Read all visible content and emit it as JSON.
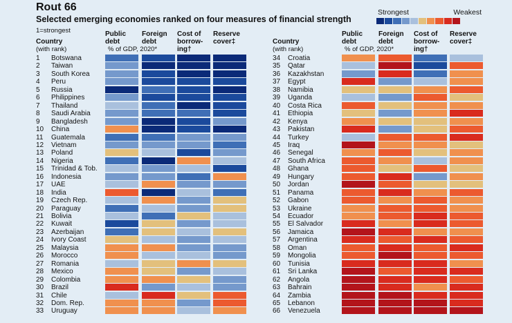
{
  "title": "Rout 66",
  "subtitle": "Selected emerging economies ranked on four measures of financial strength",
  "note": "1=strongest",
  "legend": {
    "strongest": "Strongest",
    "weakest": "Weakest"
  },
  "palette": [
    "#0b2a78",
    "#1b4a9c",
    "#3f6fb6",
    "#7599cc",
    "#a9c0dd",
    "#e3c07c",
    "#f0904e",
    "#ec5a2f",
    "#d92b1e",
    "#b3141b"
  ],
  "headers": {
    "country": "Country",
    "country_sub": "(with rank)",
    "public_debt": "Public debt",
    "foreign_debt": "Foreign debt",
    "gdp_note": "% of GDP, 2020*",
    "cost_of_borrowing": "Cost of borrow-ing†",
    "reserve_cover": "Reserve cover‡"
  },
  "chart_data": {
    "type": "table",
    "title": "Rout 66",
    "subtitle": "Selected emerging economies ranked on four measures of financial strength",
    "measures": [
      "Public debt",
      "Foreign debt",
      "Cost of borrowing",
      "Reserve cover"
    ],
    "scale": "0 = strongest, 9 = weakest",
    "rows": [
      {
        "rank": 1,
        "country": "Botswana",
        "levels": [
          2,
          1,
          0,
          0
        ]
      },
      {
        "rank": 2,
        "country": "Taiwan",
        "levels": [
          3,
          0,
          0,
          0
        ]
      },
      {
        "rank": 3,
        "country": "South Korea",
        "levels": [
          3,
          1,
          0,
          0
        ]
      },
      {
        "rank": 4,
        "country": "Peru",
        "levels": [
          3,
          1,
          1,
          1
        ]
      },
      {
        "rank": 5,
        "country": "Russia",
        "levels": [
          0,
          2,
          1,
          0
        ]
      },
      {
        "rank": 6,
        "country": "Philippines",
        "levels": [
          3,
          1,
          1,
          1
        ]
      },
      {
        "rank": 7,
        "country": "Thailand",
        "levels": [
          4,
          2,
          0,
          1
        ]
      },
      {
        "rank": 8,
        "country": "Saudi Arabia",
        "levels": [
          3,
          2,
          2,
          1
        ]
      },
      {
        "rank": 9,
        "country": "Bangladesh",
        "levels": [
          3,
          0,
          1,
          3
        ]
      },
      {
        "rank": 10,
        "country": "China",
        "levels": [
          6,
          0,
          1,
          0
        ]
      },
      {
        "rank": 11,
        "country": "Guatemala",
        "levels": [
          2,
          2,
          3,
          3
        ]
      },
      {
        "rank": 12,
        "country": "Vietnam",
        "levels": [
          3,
          3,
          3,
          2
        ]
      },
      {
        "rank": 13,
        "country": "Poland",
        "levels": [
          5,
          4,
          1,
          3
        ]
      },
      {
        "rank": 14,
        "country": "Nigeria",
        "levels": [
          2,
          0,
          6,
          4
        ]
      },
      {
        "rank": 15,
        "country": "Trinidad & Tob.",
        "levels": [
          4,
          3,
          4,
          1
        ]
      },
      {
        "rank": 16,
        "country": "Indonesia",
        "levels": [
          3,
          3,
          2,
          6
        ]
      },
      {
        "rank": 17,
        "country": "UAE",
        "levels": [
          4,
          6,
          3,
          3
        ]
      },
      {
        "rank": 18,
        "country": "India",
        "levels": [
          7,
          0,
          4,
          2
        ]
      },
      {
        "rank": 19,
        "country": "Czech Rep.",
        "levels": [
          4,
          6,
          3,
          5
        ]
      },
      {
        "rank": 20,
        "country": "Paraguay",
        "levels": [
          2,
          4,
          3,
          5
        ]
      },
      {
        "rank": 21,
        "country": "Bolivia",
        "levels": [
          4,
          2,
          5,
          4
        ]
      },
      {
        "rank": 22,
        "country": "Kuwait",
        "levels": [
          1,
          5,
          3,
          4
        ]
      },
      {
        "rank": 23,
        "country": "Azerbaijan",
        "levels": [
          2,
          5,
          4,
          5
        ]
      },
      {
        "rank": 24,
        "country": "Ivory Coast",
        "levels": [
          5,
          4,
          3,
          4
        ]
      },
      {
        "rank": 25,
        "country": "Malaysia",
        "levels": [
          6,
          6,
          3,
          3
        ]
      },
      {
        "rank": 26,
        "country": "Morocco",
        "levels": [
          6,
          4,
          4,
          3
        ]
      },
      {
        "rank": 27,
        "country": "Romania",
        "levels": [
          4,
          5,
          6,
          5
        ]
      },
      {
        "rank": 28,
        "country": "Mexico",
        "levels": [
          6,
          5,
          3,
          4
        ]
      },
      {
        "rank": 29,
        "country": "Colombia",
        "levels": [
          6,
          6,
          5,
          3
        ]
      },
      {
        "rank": 30,
        "country": "Brazil",
        "levels": [
          8,
          3,
          4,
          3
        ]
      },
      {
        "rank": 31,
        "country": "Chile",
        "levels": [
          4,
          8,
          5,
          7
        ]
      },
      {
        "rank": 32,
        "country": "Dom. Rep.",
        "levels": [
          6,
          6,
          3,
          7
        ]
      },
      {
        "rank": 33,
        "country": "Uruguay",
        "levels": [
          6,
          6,
          4,
          6
        ]
      },
      {
        "rank": 34,
        "country": "Croatia",
        "levels": [
          6,
          7,
          2,
          4
        ]
      },
      {
        "rank": 35,
        "country": "Qatar",
        "levels": [
          4,
          9,
          1,
          7
        ]
      },
      {
        "rank": 36,
        "country": "Kazakhstan",
        "levels": [
          3,
          8,
          2,
          6
        ]
      },
      {
        "rank": 37,
        "country": "Egypt",
        "levels": [
          8,
          3,
          4,
          6
        ]
      },
      {
        "rank": 38,
        "country": "Namibia",
        "levels": [
          5,
          5,
          6,
          7
        ]
      },
      {
        "rank": 39,
        "country": "Uganda",
        "levels": [
          4,
          3,
          7,
          5
        ]
      },
      {
        "rank": 40,
        "country": "Costa Rica",
        "levels": [
          7,
          5,
          6,
          6
        ]
      },
      {
        "rank": 41,
        "country": "Ethiopia",
        "levels": [
          5,
          3,
          6,
          8
        ]
      },
      {
        "rank": 42,
        "country": "Kenya",
        "levels": [
          6,
          5,
          5,
          6
        ]
      },
      {
        "rank": 43,
        "country": "Pakistan",
        "levels": [
          8,
          3,
          5,
          7
        ]
      },
      {
        "rank": 44,
        "country": "Turkey",
        "levels": [
          4,
          7,
          7,
          8
        ]
      },
      {
        "rank": 45,
        "country": "Iraq",
        "levels": [
          9,
          6,
          6,
          5
        ]
      },
      {
        "rank": 46,
        "country": "Senegal",
        "levels": [
          6,
          7,
          5,
          6
        ]
      },
      {
        "rank": 47,
        "country": "South Africa",
        "levels": [
          7,
          6,
          4,
          6
        ]
      },
      {
        "rank": 48,
        "country": "Ghana",
        "levels": [
          7,
          5,
          7,
          5
        ]
      },
      {
        "rank": 49,
        "country": "Hungary",
        "levels": [
          7,
          8,
          3,
          6
        ]
      },
      {
        "rank": 50,
        "country": "Jordan",
        "levels": [
          9,
          7,
          5,
          5
        ]
      },
      {
        "rank": 51,
        "country": "Panama",
        "levels": [
          7,
          8,
          6,
          7
        ]
      },
      {
        "rank": 52,
        "country": "Gabon",
        "levels": [
          7,
          6,
          7,
          6
        ]
      },
      {
        "rank": 53,
        "country": "Ukraine",
        "levels": [
          6,
          7,
          7,
          6
        ]
      },
      {
        "rank": 54,
        "country": "Ecuador",
        "levels": [
          6,
          7,
          8,
          7
        ]
      },
      {
        "rank": 55,
        "country": "El Salvador",
        "levels": [
          8,
          6,
          8,
          7
        ]
      },
      {
        "rank": 56,
        "country": "Jamaica",
        "levels": [
          9,
          8,
          6,
          6
        ]
      },
      {
        "rank": 57,
        "country": "Argentina",
        "levels": [
          8,
          7,
          8,
          7
        ]
      },
      {
        "rank": 58,
        "country": "Oman",
        "levels": [
          7,
          8,
          7,
          8
        ]
      },
      {
        "rank": 59,
        "country": "Mongolia",
        "levels": [
          7,
          9,
          7,
          7
        ]
      },
      {
        "rank": 60,
        "country": "Tunisia",
        "levels": [
          8,
          8,
          8,
          6
        ]
      },
      {
        "rank": 61,
        "country": "Sri Lanka",
        "levels": [
          9,
          7,
          8,
          8
        ]
      },
      {
        "rank": 62,
        "country": "Angola",
        "levels": [
          9,
          8,
          8,
          7
        ]
      },
      {
        "rank": 63,
        "country": "Bahrain",
        "levels": [
          9,
          8,
          6,
          8
        ]
      },
      {
        "rank": 64,
        "country": "Zambia",
        "levels": [
          9,
          9,
          8,
          8
        ]
      },
      {
        "rank": 65,
        "country": "Lebanon",
        "levels": [
          9,
          9,
          9,
          8
        ]
      },
      {
        "rank": 66,
        "country": "Venezuela",
        "levels": [
          9,
          9,
          9,
          9
        ]
      }
    ]
  }
}
